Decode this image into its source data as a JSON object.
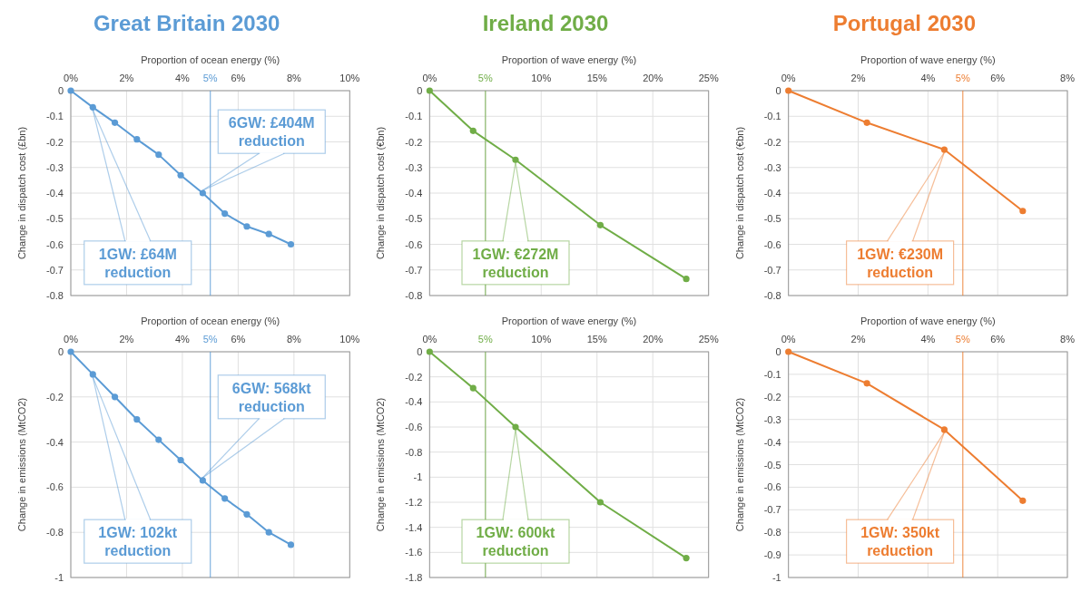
{
  "chart_data": [
    {
      "type": "line",
      "title": "Great Britain 2030",
      "xlabel": "Proportion of ocean energy (%)",
      "ylabel": "Change in dispatch cost (£bn)",
      "x": [
        0,
        0.79,
        1.58,
        2.37,
        3.15,
        3.94,
        4.73,
        5.52,
        6.31,
        7.1,
        7.89
      ],
      "series": [
        {
          "color": "#5b9bd5",
          "values": [
            0,
            -0.065,
            -0.125,
            -0.19,
            -0.25,
            -0.33,
            -0.4,
            -0.48,
            -0.53,
            -0.56,
            -0.6
          ]
        }
      ],
      "xlim": [
        0,
        10
      ],
      "xticks": [
        {
          "value": 0,
          "label": "0%"
        },
        {
          "value": 2,
          "label": "2%"
        },
        {
          "value": 4,
          "label": "4%"
        },
        {
          "value": 6,
          "label": "6%"
        },
        {
          "value": 8,
          "label": "8%"
        },
        {
          "value": 10,
          "label": "10%"
        }
      ],
      "ylim": [
        -0.8,
        0
      ],
      "yticks": [
        0,
        -0.1,
        -0.2,
        -0.3,
        -0.4,
        -0.5,
        -0.6,
        -0.7,
        -0.8
      ],
      "ref_lines": [
        {
          "axis": "x",
          "value": 5,
          "label": "5%",
          "color": "#5b9bd5"
        }
      ],
      "annotations": [
        {
          "text": "1GW: £64M reduction",
          "x": 0.79,
          "y": -0.065
        },
        {
          "text": "6GW: £404M reduction",
          "x": 4.73,
          "y": -0.4
        }
      ],
      "grid": true,
      "marker": "circle",
      "line_style": "solid"
    },
    {
      "type": "line",
      "title": "Ireland 2030",
      "xlabel": "Proportion of wave energy (%)",
      "ylabel": "Change in dispatch cost (€bn)",
      "x": [
        0,
        3.9,
        7.7,
        15.3,
        23
      ],
      "series": [
        {
          "color": "#70ad47",
          "values": [
            0,
            -0.157,
            -0.27,
            -0.525,
            -0.735
          ]
        }
      ],
      "xlim": [
        0,
        25
      ],
      "xticks": [
        {
          "value": 0,
          "label": "0%"
        },
        {
          "value": 5,
          "label": null
        },
        {
          "value": 10,
          "label": "10%"
        },
        {
          "value": 15,
          "label": "15%"
        },
        {
          "value": 20,
          "label": "20%"
        },
        {
          "value": 25,
          "label": "25%"
        }
      ],
      "ylim": [
        -0.8,
        0
      ],
      "yticks": [
        0,
        -0.1,
        -0.2,
        -0.3,
        -0.4,
        -0.5,
        -0.6,
        -0.7,
        -0.8
      ],
      "ref_lines": [
        {
          "axis": "x",
          "value": 5,
          "label": "5%",
          "color": "#70ad47"
        }
      ],
      "annotations": [
        {
          "text": "1GW: €272M reduction",
          "x": 7.7,
          "y": -0.27
        }
      ],
      "grid": true,
      "marker": "circle",
      "line_style": "solid"
    },
    {
      "type": "line",
      "title": "Portugal 2030",
      "xlabel": "Proportion of wave energy (%)",
      "ylabel": "Change in dispatch cost (€bn)",
      "x": [
        0,
        2.25,
        4.47,
        6.72
      ],
      "series": [
        {
          "color": "#ed7d31",
          "values": [
            0,
            -0.125,
            -0.23,
            -0.47
          ]
        }
      ],
      "xlim": [
        0,
        8
      ],
      "xticks": [
        {
          "value": 0,
          "label": "0%"
        },
        {
          "value": 2,
          "label": "2%"
        },
        {
          "value": 4,
          "label": "4%"
        },
        {
          "value": 6,
          "label": "6%"
        },
        {
          "value": 8,
          "label": "8%"
        }
      ],
      "ylim": [
        -0.8,
        0
      ],
      "yticks": [
        0,
        -0.1,
        -0.2,
        -0.3,
        -0.4,
        -0.5,
        -0.6,
        -0.7,
        -0.8
      ],
      "ref_lines": [
        {
          "axis": "x",
          "value": 5,
          "label": "5%",
          "color": "#ed7d31"
        }
      ],
      "annotations": [
        {
          "text": "1GW: €230M reduction",
          "x": 4.47,
          "y": -0.23
        }
      ],
      "grid": true,
      "marker": "circle",
      "line_style": "solid"
    },
    {
      "type": "line",
      "xlabel": "Proportion of ocean energy (%)",
      "ylabel": "Change in emissions (MtCO2)",
      "x": [
        0,
        0.79,
        1.58,
        2.37,
        3.15,
        3.94,
        4.73,
        5.52,
        6.31,
        7.1,
        7.89
      ],
      "series": [
        {
          "color": "#5b9bd5",
          "values": [
            0,
            -0.1,
            -0.2,
            -0.3,
            -0.39,
            -0.48,
            -0.57,
            -0.65,
            -0.72,
            -0.8,
            -0.855
          ]
        }
      ],
      "xlim": [
        0,
        10
      ],
      "xticks": [
        {
          "value": 0,
          "label": "0%"
        },
        {
          "value": 2,
          "label": "2%"
        },
        {
          "value": 4,
          "label": "4%"
        },
        {
          "value": 6,
          "label": "6%"
        },
        {
          "value": 8,
          "label": "8%"
        },
        {
          "value": 10,
          "label": "10%"
        }
      ],
      "ylim": [
        -1,
        0
      ],
      "yticks": [
        0,
        -0.2,
        -0.4,
        -0.6,
        -0.8,
        -1
      ],
      "ref_lines": [
        {
          "axis": "x",
          "value": 5,
          "label": "5%",
          "color": "#5b9bd5"
        }
      ],
      "annotations": [
        {
          "text": "1GW: 102kt reduction",
          "x": 0.79,
          "y": -0.1
        },
        {
          "text": "6GW: 568kt reduction",
          "x": 4.73,
          "y": -0.57
        }
      ],
      "grid": true,
      "marker": "circle",
      "line_style": "solid"
    },
    {
      "type": "line",
      "xlabel": "Proportion of wave energy (%)",
      "ylabel": "Change in emissions (MtCO2)",
      "x": [
        0,
        3.9,
        7.7,
        15.3,
        23
      ],
      "series": [
        {
          "color": "#70ad47",
          "values": [
            0,
            -0.29,
            -0.6,
            -1.2,
            -1.645
          ]
        }
      ],
      "xlim": [
        0,
        25
      ],
      "xticks": [
        {
          "value": 0,
          "label": "0%"
        },
        {
          "value": 5,
          "label": null
        },
        {
          "value": 10,
          "label": "10%"
        },
        {
          "value": 15,
          "label": "15%"
        },
        {
          "value": 20,
          "label": "20%"
        },
        {
          "value": 25,
          "label": "25%"
        }
      ],
      "ylim": [
        -1.8,
        0
      ],
      "yticks": [
        0,
        -0.2,
        -0.4,
        -0.6,
        -0.8,
        -1,
        -1.2,
        -1.4,
        -1.6,
        -1.8
      ],
      "ref_lines": [
        {
          "axis": "x",
          "value": 5,
          "label": "5%",
          "color": "#70ad47"
        }
      ],
      "annotations": [
        {
          "text": "1GW: 600kt reduction",
          "x": 7.7,
          "y": -0.6
        }
      ],
      "grid": true,
      "marker": "circle",
      "line_style": "solid"
    },
    {
      "type": "line",
      "xlabel": "Proportion of wave energy (%)",
      "ylabel": "Change in emissions (MtCO2)",
      "x": [
        0,
        2.25,
        4.47,
        6.72
      ],
      "series": [
        {
          "color": "#ed7d31",
          "values": [
            0,
            -0.14,
            -0.345,
            -0.66
          ]
        }
      ],
      "xlim": [
        0,
        8
      ],
      "xticks": [
        {
          "value": 0,
          "label": "0%"
        },
        {
          "value": 2,
          "label": "2%"
        },
        {
          "value": 4,
          "label": "4%"
        },
        {
          "value": 6,
          "label": "6%"
        },
        {
          "value": 8,
          "label": "8%"
        }
      ],
      "ylim": [
        -1,
        0
      ],
      "yticks": [
        0,
        -0.1,
        -0.2,
        -0.3,
        -0.4,
        -0.5,
        -0.6,
        -0.7,
        -0.8,
        -0.9,
        -1
      ],
      "ref_lines": [
        {
          "axis": "x",
          "value": 5,
          "label": "5%",
          "color": "#ed7d31"
        }
      ],
      "annotations": [
        {
          "text": "1GW: 350kt reduction",
          "x": 4.47,
          "y": -0.345
        }
      ],
      "grid": true,
      "marker": "circle",
      "line_style": "solid"
    }
  ]
}
